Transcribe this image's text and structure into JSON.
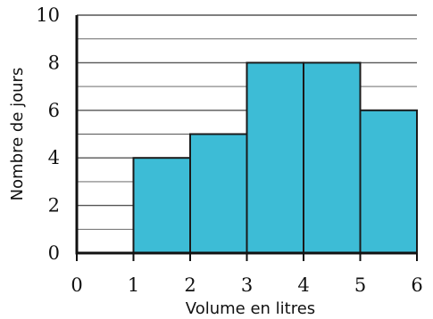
{
  "chart_data": {
    "type": "bar",
    "subtype": "histogram",
    "title": "",
    "xlabel": "Volume en litres",
    "ylabel": "Nombre de jours",
    "bins": [
      {
        "from": 0,
        "to": 1,
        "value": 0
      },
      {
        "from": 1,
        "to": 2,
        "value": 4
      },
      {
        "from": 2,
        "to": 3,
        "value": 5
      },
      {
        "from": 3,
        "to": 4,
        "value": 8
      },
      {
        "from": 4,
        "to": 5,
        "value": 8
      },
      {
        "from": 5,
        "to": 6,
        "value": 6
      }
    ],
    "xlim": [
      0,
      6
    ],
    "ylim": [
      0,
      10
    ],
    "xticks": [
      "0",
      "1",
      "2",
      "3",
      "4",
      "5",
      "6"
    ],
    "yticks": [
      "0",
      "2",
      "4",
      "6",
      "8",
      "10"
    ],
    "minor_gridlines_y": [
      1,
      3,
      5,
      7,
      9
    ],
    "grid": true,
    "bar_color": "#3dbcd6",
    "bar_edge_color": "#1a1a1a"
  }
}
